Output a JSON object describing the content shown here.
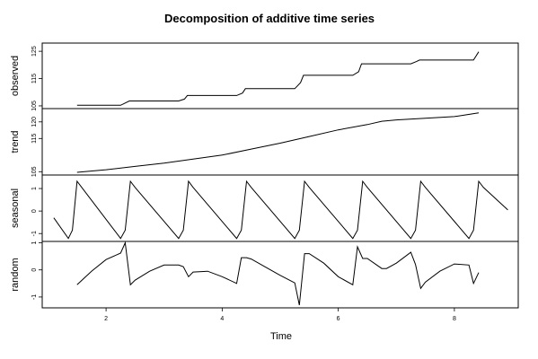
{
  "chart_data": {
    "type": "line",
    "title": "Decomposition of additive time series",
    "xlabel": "Time",
    "xlim": [
      0.9,
      9.1
    ],
    "x_ticks": [
      2,
      4,
      6,
      8
    ],
    "panels": [
      {
        "name": "observed",
        "ylabel": "observed",
        "ylim": [
          104,
          128
        ],
        "y_ticks": [
          105,
          115,
          125
        ],
        "x": [
          1.5,
          2.25,
          2.4,
          3.25,
          3.35,
          3.4,
          4.25,
          4.35,
          4.4,
          5.25,
          5.35,
          5.4,
          6.25,
          6.35,
          6.4,
          7.25,
          7.35,
          7.4,
          8.33,
          8.42
        ],
        "values": [
          105.2,
          105.2,
          106.8,
          106.8,
          107.5,
          108.8,
          108.8,
          109.7,
          111.3,
          111.3,
          113.5,
          116.2,
          116.2,
          117.5,
          120.4,
          120.4,
          121.3,
          121.8,
          121.8,
          124.8
        ]
      },
      {
        "name": "trend",
        "ylabel": "trend",
        "ylim": [
          104,
          124
        ],
        "y_ticks": [
          105,
          115,
          120
        ],
        "x": [
          1.5,
          2.0,
          2.5,
          3.0,
          3.5,
          4.0,
          4.5,
          5.0,
          5.5,
          6.0,
          6.5,
          6.75,
          7.0,
          7.5,
          8.0,
          8.42
        ],
        "values": [
          104.8,
          105.6,
          106.6,
          107.6,
          108.8,
          110.0,
          111.8,
          113.6,
          115.6,
          117.6,
          119.2,
          120.2,
          120.6,
          121.1,
          121.6,
          122.7
        ]
      },
      {
        "name": "seasonal",
        "ylabel": "seasonal",
        "ylim": [
          -1.35,
          1.6
        ],
        "y_ticks": [
          -1.0,
          0.0,
          1.0
        ],
        "x": [
          1.1,
          1.35,
          1.42,
          1.5,
          1.58,
          2.25,
          2.33,
          2.42,
          2.5,
          3.25,
          3.33,
          3.42,
          3.5,
          4.25,
          4.33,
          4.42,
          4.5,
          5.25,
          5.33,
          5.42,
          5.5,
          6.25,
          6.33,
          6.42,
          6.5,
          7.25,
          7.33,
          7.42,
          7.5,
          8.25,
          8.33,
          8.42,
          8.5,
          8.92
        ],
        "values": [
          -0.3,
          -1.22,
          -0.85,
          1.32,
          1.05,
          -1.22,
          -0.85,
          1.32,
          1.05,
          -1.22,
          -0.85,
          1.32,
          1.05,
          -1.22,
          -0.85,
          1.32,
          1.05,
          -1.22,
          -0.85,
          1.32,
          1.05,
          -1.22,
          -0.85,
          1.32,
          1.05,
          -1.22,
          -0.85,
          1.32,
          1.05,
          -1.22,
          -0.85,
          1.32,
          1.05,
          0.05
        ]
      },
      {
        "name": "random",
        "ylabel": "random",
        "ylim": [
          -1.4,
          1.05
        ],
        "y_ticks": [
          -1.0,
          0.0,
          1.0
        ],
        "x": [
          1.5,
          1.75,
          2.0,
          2.25,
          2.33,
          2.42,
          2.5,
          2.75,
          3.0,
          3.25,
          3.33,
          3.42,
          3.5,
          3.75,
          4.0,
          4.25,
          4.33,
          4.42,
          4.5,
          4.75,
          5.0,
          5.25,
          5.33,
          5.42,
          5.5,
          5.75,
          6.0,
          6.25,
          6.33,
          6.42,
          6.5,
          6.75,
          6.83,
          7.0,
          7.25,
          7.33,
          7.42,
          7.5,
          7.75,
          8.0,
          8.25,
          8.33,
          8.42
        ],
        "values": [
          -0.55,
          -0.05,
          0.38,
          0.62,
          1.0,
          -0.55,
          -0.38,
          -0.05,
          0.18,
          0.18,
          0.12,
          -0.25,
          -0.08,
          -0.05,
          -0.25,
          -0.5,
          0.45,
          0.45,
          0.4,
          0.1,
          -0.2,
          -0.48,
          -1.3,
          0.6,
          0.6,
          0.25,
          -0.25,
          -0.55,
          0.85,
          0.42,
          0.42,
          0.05,
          0.05,
          0.25,
          0.65,
          0.2,
          -0.68,
          -0.45,
          -0.05,
          0.22,
          0.18,
          -0.5,
          -0.1
        ]
      }
    ]
  }
}
